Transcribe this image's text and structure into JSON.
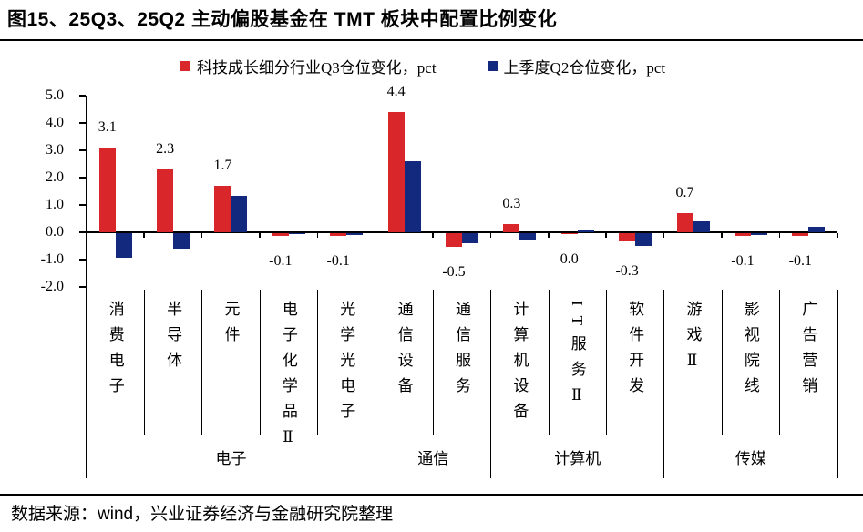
{
  "title": "图15、25Q3、25Q2 主动偏股基金在 TMT 板块中配置比例变化",
  "source": "数据来源：wind，兴业证券经济与金融研究院整理",
  "colors": {
    "q3_red": "#d8262a",
    "q2_blue": "#13297d",
    "axis": "#000000"
  },
  "legend": [
    {
      "label": "科技成长细分行业Q3仓位变化，pct",
      "color": "#d8262a"
    },
    {
      "label": "上季度Q2仓位变化，pct",
      "color": "#13297d"
    }
  ],
  "chart_data": {
    "type": "bar",
    "title": "25Q3、25Q2 主动偏股基金在 TMT 板块中配置比例变化",
    "categories": [
      "消费电子",
      "半导体",
      "元件",
      "电子化学品Ⅱ",
      "光学光电子",
      "通信设备",
      "通信服务",
      "计算机设备",
      "IT服务Ⅱ",
      "软件开发",
      "游戏Ⅱ",
      "影视院线",
      "广告营销"
    ],
    "groups": [
      {
        "label": "电子",
        "span": 5
      },
      {
        "label": "通信",
        "span": 2
      },
      {
        "label": "计算机",
        "span": 3
      },
      {
        "label": "传媒",
        "span": 3
      }
    ],
    "series": [
      {
        "name": "科技成长细分行业Q3仓位变化，pct",
        "color": "#d8262a",
        "values": [
          3.1,
          2.3,
          1.7,
          -0.1,
          -0.1,
          4.4,
          -0.5,
          0.3,
          -0.03,
          -0.3,
          0.7,
          -0.1,
          -0.1
        ],
        "labels": [
          "3.1",
          "2.3",
          "1.7",
          "-0.1",
          "-0.1",
          "4.4",
          "-0.5",
          "0.3",
          "0.0",
          "-0.3",
          "0.7",
          "-0.1",
          "-0.1"
        ]
      },
      {
        "name": "上季度Q2仓位变化，pct",
        "color": "#13297d",
        "values": [
          -0.9,
          -0.55,
          1.35,
          -0.04,
          -0.06,
          2.6,
          -0.35,
          -0.25,
          0.07,
          -0.45,
          0.4,
          -0.05,
          0.2
        ]
      }
    ],
    "ylabel": "pct",
    "ylim": [
      -2.0,
      5.0
    ],
    "yticks": [
      "5.0",
      "4.0",
      "3.0",
      "2.0",
      "1.0",
      "0.0",
      "-1.0",
      "-2.0"
    ],
    "grid": false,
    "legend_position": "top"
  }
}
